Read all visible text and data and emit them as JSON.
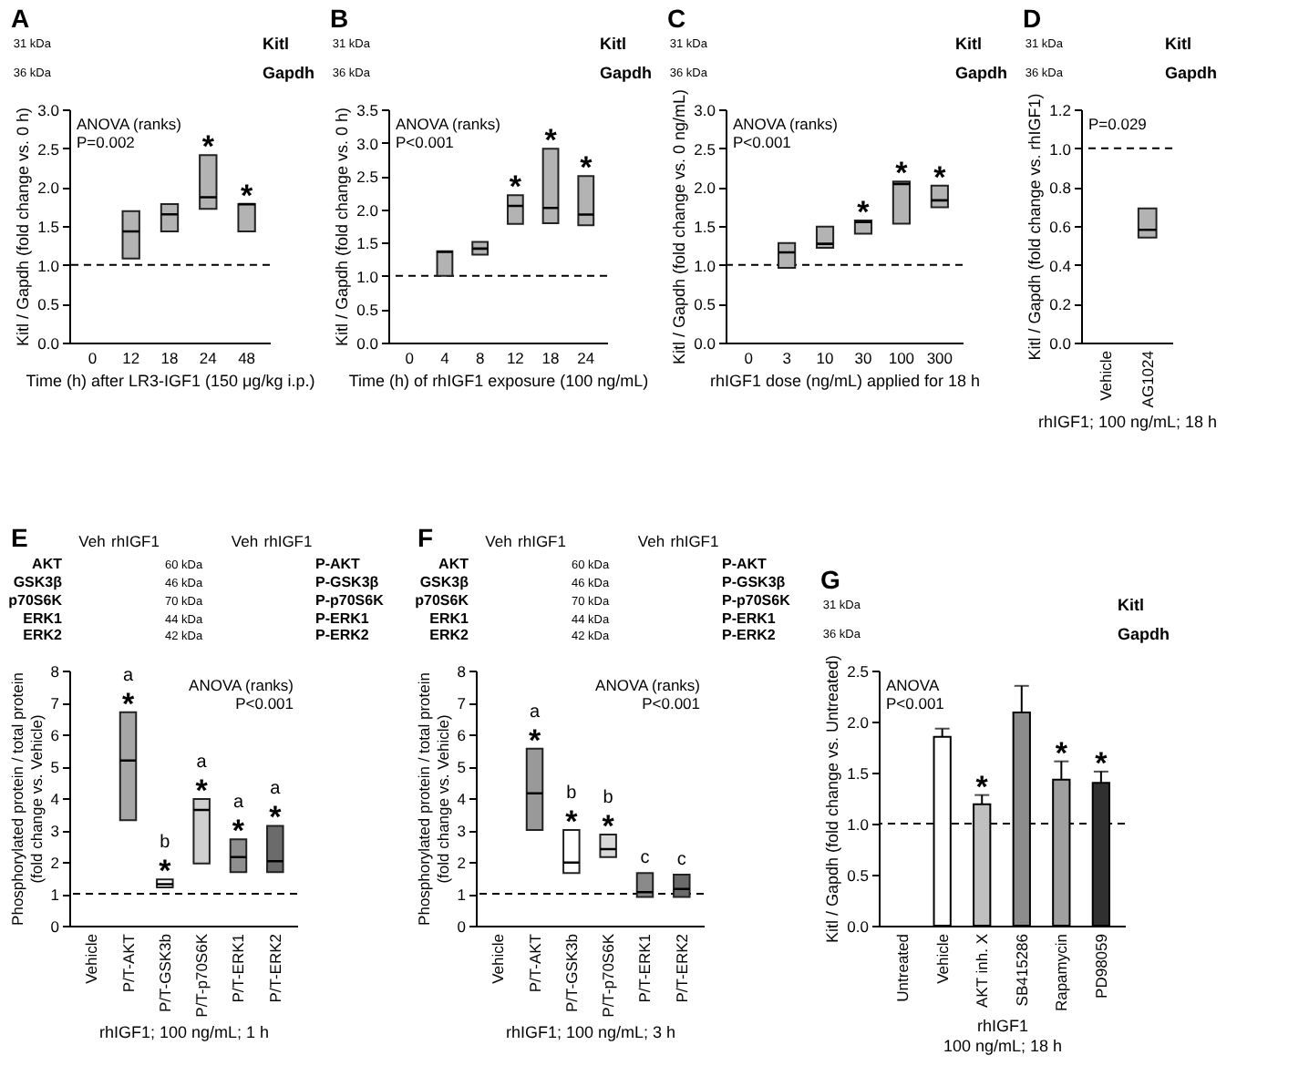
{
  "chart_data": [
    {
      "type": "box",
      "title": "A",
      "xlabel": "Time (h) after LR3-IGF1 (150 μg/kg i.p.)",
      "ylabel": "Kitl / Gapdh (fold change vs. 0 h)",
      "categories": [
        "0",
        "12",
        "18",
        "24",
        "48"
      ],
      "boxes": [
        null,
        {
          "low": 1.08,
          "q1": 1.08,
          "median": 1.43,
          "q3": 1.69,
          "high": 1.69
        },
        {
          "low": 1.43,
          "q1": 1.43,
          "median": 1.65,
          "q3": 1.78,
          "high": 1.78
        },
        {
          "low": 1.72,
          "q1": 1.72,
          "median": 1.87,
          "q3": 2.41,
          "high": 2.41
        },
        {
          "low": 1.43,
          "q1": 1.43,
          "median": 1.78,
          "q3": 1.78,
          "high": 1.78
        }
      ],
      "color": "#b3b3b3",
      "ylim": [
        0,
        3
      ],
      "yticks": [
        {
          "value": 0,
          "label": "0.0"
        },
        0.5,
        {
          "value": 1,
          "label": "1.0"
        },
        1.5,
        {
          "value": 2,
          "label": "2.0"
        },
        2.5,
        {
          "value": 3,
          "label": "3.0"
        }
      ],
      "ref_lines": [
        {
          "axis": "y",
          "value": 1,
          "line_style": "dashed"
        }
      ],
      "annotations": [
        "ANOVA (ranks)",
        "P=0.002",
        {
          "text": "*",
          "x": "24",
          "y": 2.41
        },
        {
          "text": "*",
          "x": "48",
          "y": 1.78
        },
        "31 kDa",
        "36 kDa",
        "Kitl",
        "Gapdh"
      ]
    },
    {
      "type": "box",
      "title": "B",
      "xlabel": "Time (h) of rhIGF1 exposure (100 ng/mL)",
      "ylabel": "Kitl / Gapdh (fold change vs. 0 h)",
      "categories": [
        "0",
        "4",
        "8",
        "12",
        "18",
        "24"
      ],
      "boxes": [
        null,
        {
          "low": 1.0,
          "q1": 1.0,
          "median": 1.36,
          "q3": 1.37,
          "high": 1.37
        },
        {
          "low": 1.32,
          "q1": 1.32,
          "median": 1.41,
          "q3": 1.51,
          "high": 1.51
        },
        {
          "low": 1.78,
          "q1": 1.78,
          "median": 2.05,
          "q3": 2.21,
          "high": 2.21
        },
        {
          "low": 1.79,
          "q1": 1.79,
          "median": 2.02,
          "q3": 2.91,
          "high": 2.91
        },
        {
          "low": 1.76,
          "q1": 1.76,
          "median": 1.92,
          "q3": 2.5,
          "high": 2.5
        }
      ],
      "color": "#b3b3b3",
      "ylim": [
        0,
        3.5
      ],
      "yticks": [
        {
          "value": 0,
          "label": "0.0"
        },
        0.5,
        {
          "value": 1,
          "label": "1.0"
        },
        1.5,
        {
          "value": 2,
          "label": "2.0"
        },
        2.5,
        {
          "value": 3,
          "label": "3.0"
        },
        3.5
      ],
      "ref_lines": [
        {
          "axis": "y",
          "value": 1,
          "line_style": "dashed"
        }
      ],
      "annotations": [
        "ANOVA (ranks)",
        "P<0.001",
        {
          "text": "*",
          "x": "12",
          "y": 2.21
        },
        {
          "text": "*",
          "x": "18",
          "y": 2.91
        },
        {
          "text": "*",
          "x": "24",
          "y": 2.5
        },
        "31 kDa",
        "36 kDa",
        "Kitl",
        "Gapdh"
      ]
    },
    {
      "type": "box",
      "title": "C",
      "xlabel": "rhIGF1 dose (ng/mL) applied for 18 h",
      "ylabel": "Kitl / Gapdh (fold change vs. 0 ng/mL)",
      "categories": [
        "0",
        "3",
        "10",
        "30",
        "100",
        "300"
      ],
      "boxes": [
        null,
        {
          "low": 0.96,
          "q1": 0.96,
          "median": 1.16,
          "q3": 1.28,
          "high": 1.28
        },
        {
          "low": 1.22,
          "q1": 1.22,
          "median": 1.27,
          "q3": 1.49,
          "high": 1.49
        },
        {
          "low": 1.4,
          "q1": 1.4,
          "median": 1.55,
          "q3": 1.57,
          "high": 1.57
        },
        {
          "low": 1.53,
          "q1": 1.53,
          "median": 2.04,
          "q3": 2.07,
          "high": 2.07
        },
        {
          "low": 1.74,
          "q1": 1.74,
          "median": 1.83,
          "q3": 2.02,
          "high": 2.02
        }
      ],
      "color": "#b3b3b3",
      "ylim": [
        0,
        3
      ],
      "yticks": [
        {
          "value": 0,
          "label": "0.0"
        },
        0.5,
        {
          "value": 1,
          "label": "1.0"
        },
        1.5,
        {
          "value": 2,
          "label": "2.0"
        },
        2.5,
        {
          "value": 3,
          "label": "3.0"
        }
      ],
      "ref_lines": [
        {
          "axis": "y",
          "value": 1,
          "line_style": "dashed"
        }
      ],
      "annotations": [
        "ANOVA (ranks)",
        "P<0.001",
        {
          "text": "*",
          "x": "30",
          "y": 1.57
        },
        {
          "text": "*",
          "x": "100",
          "y": 2.07
        },
        {
          "text": "*",
          "x": "300",
          "y": 2.02
        },
        "31 kDa",
        "36 kDa",
        "Kitl",
        "Gapdh"
      ]
    },
    {
      "type": "box",
      "title": "D",
      "xlabel": "rhIGF1; 100 ng/mL; 18 h",
      "ylabel": "Kitl / Gapdh (fold change vs. rhIGF1)",
      "categories": [
        "Vehicle",
        "AG1024"
      ],
      "boxes": [
        null,
        {
          "low": 0.54,
          "q1": 0.54,
          "median": 0.58,
          "q3": 0.69,
          "high": 0.69
        }
      ],
      "color": "#b3b3b3",
      "ylim": [
        0,
        1.2
      ],
      "yticks": [
        {
          "value": 0,
          "label": "0.0"
        },
        0.2,
        0.4,
        0.6,
        0.8,
        {
          "value": 1,
          "label": "1.0"
        },
        1.2
      ],
      "ref_lines": [
        {
          "axis": "y",
          "value": 1,
          "line_style": "dashed"
        }
      ],
      "annotations": [
        "P=0.029",
        "31 kDa",
        "36 kDa",
        "Kitl",
        "Gapdh"
      ]
    },
    {
      "type": "box",
      "title": "E",
      "xlabel": "rhIGF1; 100 ng/mL; 1 h",
      "ylabel": "Phosphorylated protein / total protein\n(fold change vs. Vehicle)",
      "categories": [
        "Vehicle",
        "P/T-AKT",
        "P/T-GSK3b",
        "P/T-p70S6K",
        "P/T-ERK1",
        "P/T-ERK2"
      ],
      "boxes": [
        null,
        {
          "low": 3.31,
          "q1": 3.31,
          "median": 5.18,
          "q3": 6.69,
          "high": 6.69
        },
        {
          "low": 1.2,
          "q1": 1.2,
          "median": 1.3,
          "q3": 1.45,
          "high": 1.45
        },
        {
          "low": 1.95,
          "q1": 1.95,
          "median": 3.63,
          "q3": 3.97,
          "high": 3.97
        },
        {
          "low": 1.68,
          "q1": 1.68,
          "median": 2.15,
          "q3": 2.71,
          "high": 2.71
        },
        {
          "low": 1.68,
          "q1": 1.68,
          "median": 2.02,
          "q3": 3.13,
          "high": 3.13
        }
      ],
      "colors": [
        null,
        "#a6a6a6",
        "#ffffff",
        "#cfcfcf",
        "#8f8f8f",
        "#6b6b6b"
      ],
      "ylim": [
        0,
        8
      ],
      "yticks": [
        0,
        1,
        2,
        3,
        4,
        5,
        6,
        7,
        8
      ],
      "ref_lines": [
        {
          "axis": "y",
          "value": 1,
          "line_style": "dashed"
        }
      ],
      "annotations": [
        "ANOVA (ranks)",
        "P<0.001",
        {
          "text": "*",
          "x": "P/T-AKT",
          "y": 6.69
        },
        {
          "text": "a",
          "x": "P/T-AKT",
          "y": 6.69
        },
        {
          "text": "*",
          "x": "P/T-GSK3b",
          "y": 1.45
        },
        {
          "text": "b",
          "x": "P/T-GSK3b",
          "y": 1.45
        },
        {
          "text": "*",
          "x": "P/T-p70S6K",
          "y": 3.97
        },
        {
          "text": "a",
          "x": "P/T-p70S6K",
          "y": 3.97
        },
        {
          "text": "*",
          "x": "P/T-ERK1",
          "y": 2.71
        },
        {
          "text": "a",
          "x": "P/T-ERK1",
          "y": 2.71
        },
        {
          "text": "*",
          "x": "P/T-ERK2",
          "y": 3.13
        },
        {
          "text": "a",
          "x": "P/T-ERK2",
          "y": 3.13
        },
        "Veh",
        "rhIGF1",
        "Veh",
        "rhIGF1",
        "AKT",
        "GSK3β",
        "p70S6K",
        "ERK1",
        "ERK2",
        "60 kDa",
        "46 kDa",
        "70 kDa",
        "44 kDa",
        "42 kDa",
        "P-AKT",
        "P-GSK3β",
        "P-p70S6K",
        "P-ERK1",
        "P-ERK2"
      ]
    },
    {
      "type": "box",
      "title": "F",
      "xlabel": "rhIGF1; 100 ng/mL; 3 h",
      "ylabel": "Phosphorylated protein / total protein\n(fold change vs. Vehicle)",
      "categories": [
        "Vehicle",
        "P/T-AKT",
        "P/T-GSK3b",
        "P/T-p70S6K",
        "P/T-ERK1",
        "P/T-ERK2"
      ],
      "boxes": [
        null,
        {
          "low": 3.0,
          "q1": 3.0,
          "median": 4.15,
          "q3": 5.55,
          "high": 5.55
        },
        {
          "low": 1.65,
          "q1": 1.65,
          "median": 1.98,
          "q3": 3.0,
          "high": 3.0
        },
        {
          "low": 2.15,
          "q1": 2.15,
          "median": 2.4,
          "q3": 2.86,
          "high": 2.86
        },
        {
          "low": 0.9,
          "q1": 0.9,
          "median": 1.05,
          "q3": 1.65,
          "high": 1.65
        },
        {
          "low": 0.9,
          "q1": 0.9,
          "median": 1.15,
          "q3": 1.6,
          "high": 1.6
        }
      ],
      "colors": [
        null,
        "#999999",
        "#ffffff",
        "#d9d9d9",
        "#8a8a8a",
        "#6b6b6b"
      ],
      "ylim": [
        0,
        8
      ],
      "yticks": [
        0,
        1,
        2,
        3,
        4,
        5,
        6,
        7,
        8
      ],
      "ref_lines": [
        {
          "axis": "y",
          "value": 1,
          "line_style": "dashed"
        }
      ],
      "annotations": [
        "ANOVA (ranks)",
        "P<0.001",
        {
          "text": "*",
          "x": "P/T-AKT",
          "y": 5.55
        },
        {
          "text": "a",
          "x": "P/T-AKT",
          "y": 5.55
        },
        {
          "text": "*",
          "x": "P/T-GSK3b",
          "y": 3.0
        },
        {
          "text": "b",
          "x": "P/T-GSK3b",
          "y": 3.0
        },
        {
          "text": "*",
          "x": "P/T-p70S6K",
          "y": 2.86
        },
        {
          "text": "b",
          "x": "P/T-p70S6K",
          "y": 2.86
        },
        {
          "text": "c",
          "x": "P/T-ERK1",
          "y": 1.65
        },
        {
          "text": "c",
          "x": "P/T-ERK2",
          "y": 1.6
        },
        "Veh",
        "rhIGF1",
        "Veh",
        "rhIGF1",
        "AKT",
        "GSK3β",
        "p70S6K",
        "ERK1",
        "ERK2",
        "60 kDa",
        "46 kDa",
        "70 kDa",
        "44 kDa",
        "42 kDa",
        "P-AKT",
        "P-GSK3β",
        "P-p70S6K",
        "P-ERK1",
        "P-ERK2"
      ]
    },
    {
      "type": "bar",
      "title": "G",
      "xlabel": "rhIGF1\n100 ng/mL; 18 h",
      "ylabel": "Kitl / Gapdh (fold change vs. Untreated)",
      "categories": [
        "Untreated",
        "Vehicle",
        "AKT inh. X",
        "SB415286",
        "Rapamycin",
        "PD98059"
      ],
      "values": [
        null,
        1.85,
        1.19,
        2.09,
        1.43,
        1.4
      ],
      "errors": [
        null,
        0.08,
        0.09,
        0.26,
        0.18,
        0.11
      ],
      "colors": [
        null,
        "#ffffff",
        "#c0c0c0",
        "#8c8c8c",
        "#a0a0a0",
        "#303030"
      ],
      "ylim": [
        0,
        2.5
      ],
      "yticks": [
        {
          "value": 0,
          "label": "0.0"
        },
        0.5,
        {
          "value": 1,
          "label": "1.0"
        },
        1.5,
        {
          "value": 2,
          "label": "2.0"
        },
        2.5
      ],
      "ref_lines": [
        {
          "axis": "y",
          "value": 1,
          "line_style": "dashed"
        }
      ],
      "annotations": [
        "ANOVA",
        "P<0.001",
        {
          "text": "*",
          "x": "AKT inh. X",
          "y": 1.19
        },
        {
          "text": "*",
          "x": "Rapamycin",
          "y": 1.43
        },
        {
          "text": "*",
          "x": "PD98059",
          "y": 1.4
        },
        "31 kDa",
        "36 kDa",
        "Kitl",
        "Gapdh"
      ]
    }
  ]
}
